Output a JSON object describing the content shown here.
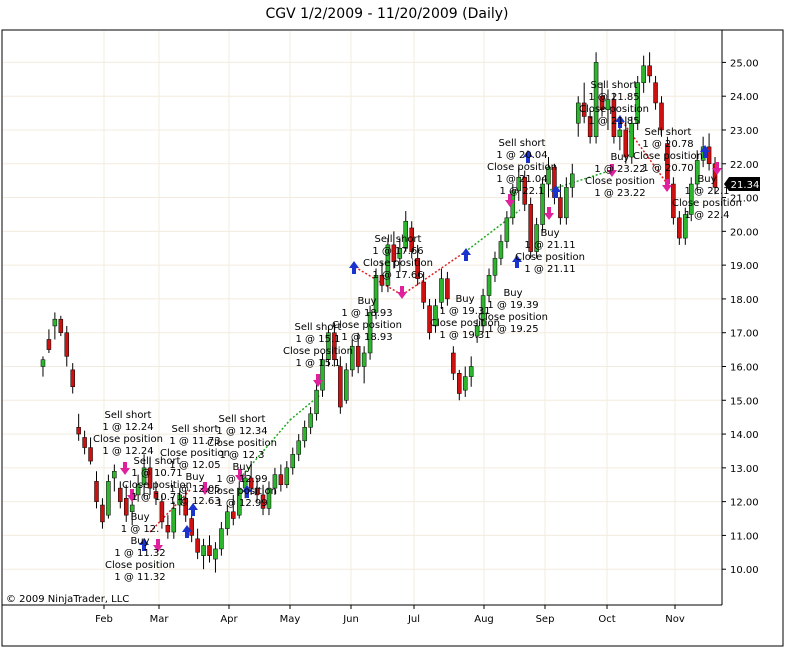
{
  "chart_data": {
    "type": "candlestick",
    "title": "CGV  1/2/2009 - 11/20/2009 (Daily)",
    "copyright": "© 2009 NinjaTrader, LLC",
    "last_price_label": "21.34",
    "y_ticks": [
      "25.00",
      "24.00",
      "23.00",
      "22.00",
      "21.00",
      "20.00",
      "19.00",
      "18.00",
      "17.00",
      "16.00",
      "15.00",
      "14.00",
      "13.00",
      "12.00",
      "11.00",
      "10.00"
    ],
    "x_ticks": [
      "Feb",
      "Mar",
      "Apr",
      "May",
      "Jun",
      "Jul",
      "Aug",
      "Sep",
      "Oct",
      "Nov"
    ],
    "ylim": [
      9.0,
      25.9
    ],
    "grid": true,
    "colors": {
      "up_candle": "#2db52d",
      "down_candle": "#cc1111",
      "grid": "#f3ebdf",
      "frame": "#000000",
      "entry_arrow_buy": "#1a33cc",
      "entry_arrow_short": "#e0219e",
      "exit_line_green": "#22aa22",
      "exit_line_red": "#dd2222",
      "price_marker": "#000000"
    },
    "trade_labels": [
      {
        "text": "Sell short",
        "lines": [
          "Sell short",
          "1 @ 12.24",
          "Close position",
          "1 @ 12.24"
        ]
      },
      {
        "text": "Sell short",
        "lines": [
          "Sell short",
          "1 @ 10.71",
          "Close position",
          "1 @ 10.71"
        ]
      },
      {
        "text": "Buy",
        "lines": [
          "Buy",
          "1 @ 12.",
          "Buy",
          "1 @ 11.32",
          "Close position",
          "1 @ 11.32"
        ]
      },
      {
        "text": "Sell short",
        "lines": [
          "Sell short",
          "1 @ 11.73",
          "Close position",
          "1 @ 12.05",
          "Buy",
          "1 @ 12.05",
          "1 @ 12.63"
        ]
      },
      {
        "text": "Sell short",
        "lines": [
          "Sell short",
          "1 @ 12.34",
          "Close position",
          "1 @ 12.3",
          "Buy",
          "1 @ 12.99",
          "Close position",
          "1 @ 12.99"
        ]
      },
      {
        "text": "Sell short",
        "lines": [
          "Sell short",
          "1 @ 15.1",
          "Close position",
          "1 @ 15.1"
        ]
      },
      {
        "text": "Buy",
        "lines": [
          "Buy",
          "1 @ 18.93",
          "Close position",
          "1 @ 18.93"
        ]
      },
      {
        "text": "Sell short",
        "lines": [
          "Sell short",
          "1 @ 17.66",
          "Close position",
          "1 @ 17.66"
        ]
      },
      {
        "text": "Buy",
        "lines": [
          "Buy",
          "1 @ 19.31",
          "Close position",
          "1 @ 19.31"
        ]
      },
      {
        "text": "Buy",
        "lines": [
          "Buy",
          "1 @ 19.39",
          "Close position",
          "1 @ 19.25"
        ]
      },
      {
        "text": "Sell short",
        "lines": [
          "Sell short",
          "1 @ 20.04",
          "Close position",
          "1 @ 21.04",
          "1 @ 22.1"
        ]
      },
      {
        "text": "Buy",
        "lines": [
          "Buy",
          "1 @ 21.11",
          "Close position",
          "1 @ 21.11"
        ]
      },
      {
        "text": "Sell short",
        "lines": [
          "Sell short",
          "1 @ 21.85",
          "Close position",
          "1 @ 21.85"
        ]
      },
      {
        "text": "Buy",
        "lines": [
          "Buy",
          "1 @ 23.22",
          "Close position",
          "1 @ 23.22"
        ]
      },
      {
        "text": "Sell short",
        "lines": [
          "Sell short",
          "1 @ 20.78",
          "Close position",
          "1 @ 20.70"
        ]
      },
      {
        "text": "Buy",
        "lines": [
          "Buy",
          "1 @ 22.1",
          "Close position",
          "1 @ 22.4"
        ]
      }
    ],
    "candles": [
      {
        "x": 0,
        "o": 16.0,
        "h": 16.3,
        "l": 15.7,
        "c": 16.2
      },
      {
        "x": 1,
        "o": 16.8,
        "h": 17.1,
        "l": 16.4,
        "c": 16.5
      },
      {
        "x": 2,
        "o": 17.2,
        "h": 17.6,
        "l": 16.8,
        "c": 17.4
      },
      {
        "x": 3,
        "o": 17.4,
        "h": 17.5,
        "l": 16.9,
        "c": 17.0
      },
      {
        "x": 4,
        "o": 17.0,
        "h": 17.2,
        "l": 16.0,
        "c": 16.3
      },
      {
        "x": 5,
        "o": 15.9,
        "h": 16.1,
        "l": 15.2,
        "c": 15.4
      },
      {
        "x": 6,
        "o": 14.2,
        "h": 14.6,
        "l": 13.8,
        "c": 14.0
      },
      {
        "x": 7,
        "o": 13.9,
        "h": 14.1,
        "l": 13.4,
        "c": 13.6
      },
      {
        "x": 8,
        "o": 13.6,
        "h": 13.9,
        "l": 13.1,
        "c": 13.2
      },
      {
        "x": 9,
        "o": 12.6,
        "h": 12.9,
        "l": 11.8,
        "c": 12.0
      },
      {
        "x": 10,
        "o": 11.9,
        "h": 12.1,
        "l": 11.2,
        "c": 11.4
      },
      {
        "x": 11,
        "o": 11.6,
        "h": 12.8,
        "l": 11.5,
        "c": 12.6
      },
      {
        "x": 12,
        "o": 12.7,
        "h": 13.1,
        "l": 12.3,
        "c": 12.9
      },
      {
        "x": 13,
        "o": 12.4,
        "h": 12.6,
        "l": 11.8,
        "c": 12.0
      },
      {
        "x": 14,
        "o": 12.1,
        "h": 12.5,
        "l": 11.4,
        "c": 11.6
      },
      {
        "x": 15,
        "o": 11.7,
        "h": 12.2,
        "l": 11.3,
        "c": 11.9
      },
      {
        "x": 16,
        "o": 12.2,
        "h": 12.8,
        "l": 12.0,
        "c": 12.5
      },
      {
        "x": 17,
        "o": 12.5,
        "h": 13.4,
        "l": 12.1,
        "c": 13.0
      },
      {
        "x": 18,
        "o": 13.0,
        "h": 13.3,
        "l": 12.2,
        "c": 12.4
      },
      {
        "x": 19,
        "o": 12.3,
        "h": 12.6,
        "l": 11.9,
        "c": 12.1
      },
      {
        "x": 20,
        "o": 12.0,
        "h": 12.2,
        "l": 11.2,
        "c": 11.4
      },
      {
        "x": 21,
        "o": 11.3,
        "h": 11.6,
        "l": 10.9,
        "c": 11.1
      },
      {
        "x": 22,
        "o": 11.1,
        "h": 12.0,
        "l": 10.9,
        "c": 11.8
      },
      {
        "x": 23,
        "o": 11.9,
        "h": 12.4,
        "l": 11.6,
        "c": 12.2
      },
      {
        "x": 24,
        "o": 12.1,
        "h": 12.3,
        "l": 11.4,
        "c": 11.6
      },
      {
        "x": 25,
        "o": 11.5,
        "h": 11.8,
        "l": 10.8,
        "c": 11.0
      },
      {
        "x": 26,
        "o": 10.9,
        "h": 11.2,
        "l": 10.3,
        "c": 10.5
      },
      {
        "x": 27,
        "o": 10.4,
        "h": 10.9,
        "l": 10.0,
        "c": 10.7
      },
      {
        "x": 28,
        "o": 10.7,
        "h": 11.0,
        "l": 10.2,
        "c": 10.4
      },
      {
        "x": 29,
        "o": 10.3,
        "h": 10.8,
        "l": 9.9,
        "c": 10.6
      },
      {
        "x": 30,
        "o": 10.6,
        "h": 11.4,
        "l": 10.4,
        "c": 11.2
      },
      {
        "x": 31,
        "o": 11.2,
        "h": 11.9,
        "l": 11.0,
        "c": 11.7
      },
      {
        "x": 32,
        "o": 11.7,
        "h": 12.2,
        "l": 11.3,
        "c": 11.5
      },
      {
        "x": 33,
        "o": 11.6,
        "h": 12.6,
        "l": 11.5,
        "c": 12.4
      },
      {
        "x": 34,
        "o": 12.4,
        "h": 12.9,
        "l": 12.1,
        "c": 12.7
      },
      {
        "x": 35,
        "o": 12.7,
        "h": 13.2,
        "l": 12.2,
        "c": 12.4
      },
      {
        "x": 36,
        "o": 12.4,
        "h": 12.7,
        "l": 12.0,
        "c": 12.2
      },
      {
        "x": 37,
        "o": 12.2,
        "h": 12.5,
        "l": 11.6,
        "c": 11.8
      },
      {
        "x": 38,
        "o": 11.8,
        "h": 12.6,
        "l": 11.6,
        "c": 12.4
      },
      {
        "x": 39,
        "o": 12.4,
        "h": 13.0,
        "l": 12.2,
        "c": 12.8
      },
      {
        "x": 40,
        "o": 12.8,
        "h": 13.1,
        "l": 12.3,
        "c": 12.5
      },
      {
        "x": 41,
        "o": 12.5,
        "h": 13.2,
        "l": 12.4,
        "c": 13.0
      },
      {
        "x": 42,
        "o": 13.0,
        "h": 13.6,
        "l": 12.8,
        "c": 13.4
      },
      {
        "x": 43,
        "o": 13.4,
        "h": 14.0,
        "l": 13.2,
        "c": 13.8
      },
      {
        "x": 44,
        "o": 13.8,
        "h": 14.4,
        "l": 13.6,
        "c": 14.2
      },
      {
        "x": 45,
        "o": 14.2,
        "h": 14.8,
        "l": 14.0,
        "c": 14.6
      },
      {
        "x": 46,
        "o": 14.6,
        "h": 15.5,
        "l": 14.4,
        "c": 15.3
      },
      {
        "x": 47,
        "o": 15.3,
        "h": 16.4,
        "l": 15.1,
        "c": 16.2
      },
      {
        "x": 48,
        "o": 16.2,
        "h": 17.2,
        "l": 16.0,
        "c": 17.0
      },
      {
        "x": 49,
        "o": 17.0,
        "h": 17.3,
        "l": 16.0,
        "c": 16.2
      },
      {
        "x": 50,
        "o": 16.0,
        "h": 16.3,
        "l": 14.6,
        "c": 14.8
      },
      {
        "x": 51,
        "o": 15.0,
        "h": 16.1,
        "l": 14.9,
        "c": 15.9
      },
      {
        "x": 52,
        "o": 15.9,
        "h": 16.8,
        "l": 15.7,
        "c": 16.6
      },
      {
        "x": 53,
        "o": 16.6,
        "h": 17.0,
        "l": 15.8,
        "c": 16.0
      },
      {
        "x": 54,
        "o": 16.0,
        "h": 16.6,
        "l": 15.5,
        "c": 16.4
      },
      {
        "x": 55,
        "o": 16.4,
        "h": 17.8,
        "l": 16.2,
        "c": 17.6
      },
      {
        "x": 56,
        "o": 17.6,
        "h": 18.9,
        "l": 17.4,
        "c": 18.7
      },
      {
        "x": 57,
        "o": 18.7,
        "h": 19.1,
        "l": 18.2,
        "c": 18.4
      },
      {
        "x": 58,
        "o": 18.4,
        "h": 19.8,
        "l": 18.2,
        "c": 19.6
      },
      {
        "x": 59,
        "o": 19.6,
        "h": 20.0,
        "l": 18.9,
        "c": 19.1
      },
      {
        "x": 60,
        "o": 19.2,
        "h": 19.8,
        "l": 18.8,
        "c": 19.5
      },
      {
        "x": 61,
        "o": 19.5,
        "h": 20.6,
        "l": 19.4,
        "c": 20.3
      },
      {
        "x": 62,
        "o": 20.1,
        "h": 20.3,
        "l": 19.2,
        "c": 19.4
      },
      {
        "x": 63,
        "o": 19.2,
        "h": 19.6,
        "l": 18.4,
        "c": 18.6
      },
      {
        "x": 64,
        "o": 18.5,
        "h": 18.8,
        "l": 17.7,
        "c": 17.9
      },
      {
        "x": 65,
        "o": 17.8,
        "h": 18.0,
        "l": 16.8,
        "c": 17.0
      },
      {
        "x": 66,
        "o": 17.2,
        "h": 18.0,
        "l": 17.0,
        "c": 17.8
      },
      {
        "x": 67,
        "o": 17.9,
        "h": 18.9,
        "l": 17.7,
        "c": 18.6
      },
      {
        "x": 68,
        "o": 18.6,
        "h": 18.8,
        "l": 17.8,
        "c": 18.0
      },
      {
        "x": 69,
        "o": 16.4,
        "h": 16.6,
        "l": 15.6,
        "c": 15.8
      },
      {
        "x": 70,
        "o": 15.8,
        "h": 15.9,
        "l": 15.0,
        "c": 15.2
      },
      {
        "x": 71,
        "o": 15.3,
        "h": 16.0,
        "l": 15.1,
        "c": 15.7
      },
      {
        "x": 72,
        "o": 15.7,
        "h": 16.3,
        "l": 15.4,
        "c": 16.0
      },
      {
        "x": 73,
        "o": 16.9,
        "h": 17.4,
        "l": 16.7,
        "c": 17.2
      },
      {
        "x": 74,
        "o": 17.2,
        "h": 18.3,
        "l": 17.0,
        "c": 18.1
      },
      {
        "x": 75,
        "o": 18.1,
        "h": 18.9,
        "l": 17.9,
        "c": 18.7
      },
      {
        "x": 76,
        "o": 18.7,
        "h": 19.4,
        "l": 18.5,
        "c": 19.2
      },
      {
        "x": 77,
        "o": 19.2,
        "h": 19.9,
        "l": 19.0,
        "c": 19.7
      },
      {
        "x": 78,
        "o": 19.7,
        "h": 20.6,
        "l": 19.5,
        "c": 20.4
      },
      {
        "x": 79,
        "o": 20.4,
        "h": 21.4,
        "l": 20.2,
        "c": 21.2
      },
      {
        "x": 80,
        "o": 21.2,
        "h": 21.9,
        "l": 20.9,
        "c": 21.6
      },
      {
        "x": 81,
        "o": 21.6,
        "h": 21.8,
        "l": 20.6,
        "c": 20.8
      },
      {
        "x": 82,
        "o": 20.8,
        "h": 21.0,
        "l": 19.2,
        "c": 19.4
      },
      {
        "x": 83,
        "o": 19.4,
        "h": 20.4,
        "l": 19.2,
        "c": 20.2
      },
      {
        "x": 84,
        "o": 20.2,
        "h": 21.6,
        "l": 20.0,
        "c": 21.4
      },
      {
        "x": 85,
        "o": 21.4,
        "h": 22.2,
        "l": 21.0,
        "c": 21.9
      },
      {
        "x": 86,
        "o": 21.9,
        "h": 22.0,
        "l": 20.8,
        "c": 21.0
      },
      {
        "x": 87,
        "o": 21.0,
        "h": 21.4,
        "l": 20.2,
        "c": 20.4
      },
      {
        "x": 88,
        "o": 20.4,
        "h": 21.6,
        "l": 20.2,
        "c": 21.3
      },
      {
        "x": 89,
        "o": 21.3,
        "h": 22.0,
        "l": 21.0,
        "c": 21.7
      },
      {
        "x": 90,
        "o": 23.2,
        "h": 24.0,
        "l": 22.8,
        "c": 23.8
      },
      {
        "x": 91,
        "o": 23.8,
        "h": 24.4,
        "l": 23.2,
        "c": 23.4
      },
      {
        "x": 92,
        "o": 23.4,
        "h": 23.6,
        "l": 22.6,
        "c": 22.8
      },
      {
        "x": 93,
        "o": 22.8,
        "h": 25.3,
        "l": 22.6,
        "c": 25.0
      },
      {
        "x": 94,
        "o": 24.0,
        "h": 24.4,
        "l": 23.4,
        "c": 23.6
      },
      {
        "x": 95,
        "o": 23.6,
        "h": 24.2,
        "l": 23.0,
        "c": 23.9
      },
      {
        "x": 96,
        "o": 23.9,
        "h": 24.1,
        "l": 22.6,
        "c": 22.8
      },
      {
        "x": 97,
        "o": 22.8,
        "h": 23.2,
        "l": 22.4,
        "c": 23.0
      },
      {
        "x": 98,
        "o": 23.0,
        "h": 23.4,
        "l": 22.0,
        "c": 22.2
      },
      {
        "x": 99,
        "o": 22.2,
        "h": 23.4,
        "l": 22.0,
        "c": 23.2
      },
      {
        "x": 100,
        "o": 23.2,
        "h": 24.6,
        "l": 23.0,
        "c": 24.4
      },
      {
        "x": 101,
        "o": 24.4,
        "h": 25.2,
        "l": 24.1,
        "c": 24.9
      },
      {
        "x": 102,
        "o": 24.9,
        "h": 25.3,
        "l": 24.4,
        "c": 24.6
      },
      {
        "x": 103,
        "o": 24.4,
        "h": 24.6,
        "l": 23.6,
        "c": 23.8
      },
      {
        "x": 104,
        "o": 23.8,
        "h": 24.0,
        "l": 22.8,
        "c": 23.0
      },
      {
        "x": 105,
        "o": 22.6,
        "h": 22.8,
        "l": 21.2,
        "c": 21.4
      },
      {
        "x": 106,
        "o": 21.4,
        "h": 21.6,
        "l": 20.2,
        "c": 20.4
      },
      {
        "x": 107,
        "o": 20.4,
        "h": 20.6,
        "l": 19.6,
        "c": 19.8
      },
      {
        "x": 108,
        "o": 19.8,
        "h": 20.7,
        "l": 19.6,
        "c": 20.5
      },
      {
        "x": 109,
        "o": 20.5,
        "h": 21.6,
        "l": 20.3,
        "c": 21.4
      },
      {
        "x": 110,
        "o": 21.4,
        "h": 22.4,
        "l": 21.2,
        "c": 22.1
      },
      {
        "x": 111,
        "o": 22.1,
        "h": 22.8,
        "l": 21.9,
        "c": 22.5
      },
      {
        "x": 112,
        "o": 22.5,
        "h": 22.9,
        "l": 21.8,
        "c": 22.0
      },
      {
        "x": 113,
        "o": 22.0,
        "h": 22.2,
        "l": 21.1,
        "c": 21.3
      }
    ]
  }
}
